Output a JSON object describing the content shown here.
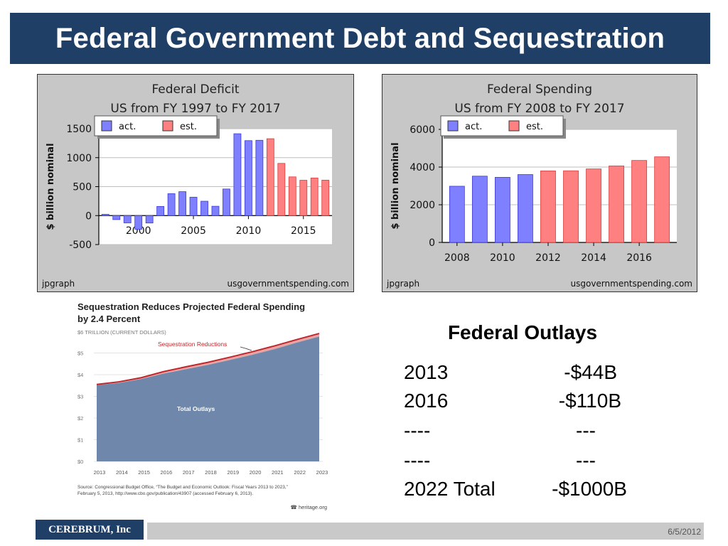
{
  "slide": {
    "title": "Federal Government Debt and Sequestration",
    "footer_brand": "CEREBRUM, Inc",
    "footer_date": "6/5/2012"
  },
  "outlays": {
    "title": "Federal Outlays",
    "rows": [
      {
        "label": "2013",
        "value": "-$44B"
      },
      {
        "label": "2016",
        "value": "-$110B"
      },
      {
        "label": "----",
        "value": "---"
      },
      {
        "label": "----",
        "value": "---"
      },
      {
        "label": "2022 Total",
        "value": "-$1000B"
      }
    ]
  },
  "chart_data": [
    {
      "type": "bar",
      "title": "Federal Deficit",
      "subtitle": "US from FY 1997 to FY 2017",
      "ylabel": "$ billion nominal",
      "xlabel": "",
      "ylim": [
        -500,
        1500
      ],
      "yticks": [
        1500,
        1000,
        500,
        0,
        -500
      ],
      "xticks": [
        2000,
        2005,
        2010,
        2015
      ],
      "legend": [
        "act.",
        "est."
      ],
      "legend_position": "top-left",
      "grid": true,
      "colors": {
        "act": "#7f80ff",
        "est": "#ff8080"
      },
      "credit_left": "jpgraph",
      "credit_right": "usgovernmentspending.com",
      "series": [
        {
          "name": "act.",
          "x": [
            1997,
            1998,
            1999,
            2000,
            2001,
            2002,
            2003,
            2004,
            2005,
            2006,
            2007,
            2008,
            2009,
            2010,
            2011
          ],
          "values": [
            22,
            -69,
            -126,
            -236,
            -128,
            158,
            378,
            413,
            318,
            248,
            161,
            459,
            1413,
            1294,
            1300
          ]
        },
        {
          "name": "est.",
          "x": [
            2012,
            2013,
            2014,
            2015,
            2016,
            2017
          ],
          "values": [
            1327,
            901,
            668,
            610,
            649,
            612
          ]
        }
      ]
    },
    {
      "type": "bar",
      "title": "Federal Spending",
      "subtitle": "US from FY 2008 to FY 2017",
      "ylabel": "$ billion nominal",
      "xlabel": "",
      "ylim": [
        0,
        6000
      ],
      "yticks": [
        6000,
        4000,
        2000,
        0
      ],
      "xticks": [
        2008,
        2010,
        2012,
        2014,
        2016
      ],
      "legend": [
        "act.",
        "est."
      ],
      "legend_position": "top-left",
      "grid": true,
      "colors": {
        "act": "#7f80ff",
        "est": "#ff8080"
      },
      "credit_left": "jpgraph",
      "credit_right": "usgovernmentspending.com",
      "series": [
        {
          "name": "act.",
          "x": [
            2008,
            2009,
            2010,
            2011
          ],
          "values": [
            2983,
            3518,
            3456,
            3603
          ]
        },
        {
          "name": "est.",
          "x": [
            2012,
            2013,
            2014,
            2015,
            2016,
            2017
          ],
          "values": [
            3796,
            3803,
            3901,
            4062,
            4352,
            4543
          ]
        }
      ]
    },
    {
      "type": "area",
      "title": "Sequestration Reduces Projected Federal Spending by 2.4 Percent",
      "ylabel": "$6 TRILLION (CURRENT DOLLARS)",
      "ylim": [
        0,
        6
      ],
      "yticks": [
        "$0",
        "$1",
        "$2",
        "$3",
        "$4",
        "$5",
        "$6"
      ],
      "categories": [
        "2013",
        "2014",
        "2015",
        "2016",
        "2017",
        "2018",
        "2019",
        "2020",
        "2021",
        "2022",
        "2023"
      ],
      "series": [
        {
          "name": "Total Outlays",
          "values": [
            3.52,
            3.62,
            3.8,
            4.05,
            4.25,
            4.45,
            4.68,
            4.92,
            5.18,
            5.48,
            5.76
          ]
        },
        {
          "name": "Sequestration Reductions",
          "values": [
            3.55,
            3.67,
            3.86,
            4.14,
            4.36,
            4.57,
            4.81,
            5.06,
            5.33,
            5.62,
            5.9
          ]
        }
      ],
      "colors": {
        "area": "#6e87aa",
        "line": "#c0272d"
      },
      "source": "Source: Congressional Budget Office, “The Budget and Economic Outlook: Fiscal Years 2013 to 2023,” February 5, 2013, http://www.cbo.gov/publication/43907 (accessed February 6, 2013).",
      "credit": "heritage.org"
    }
  ]
}
